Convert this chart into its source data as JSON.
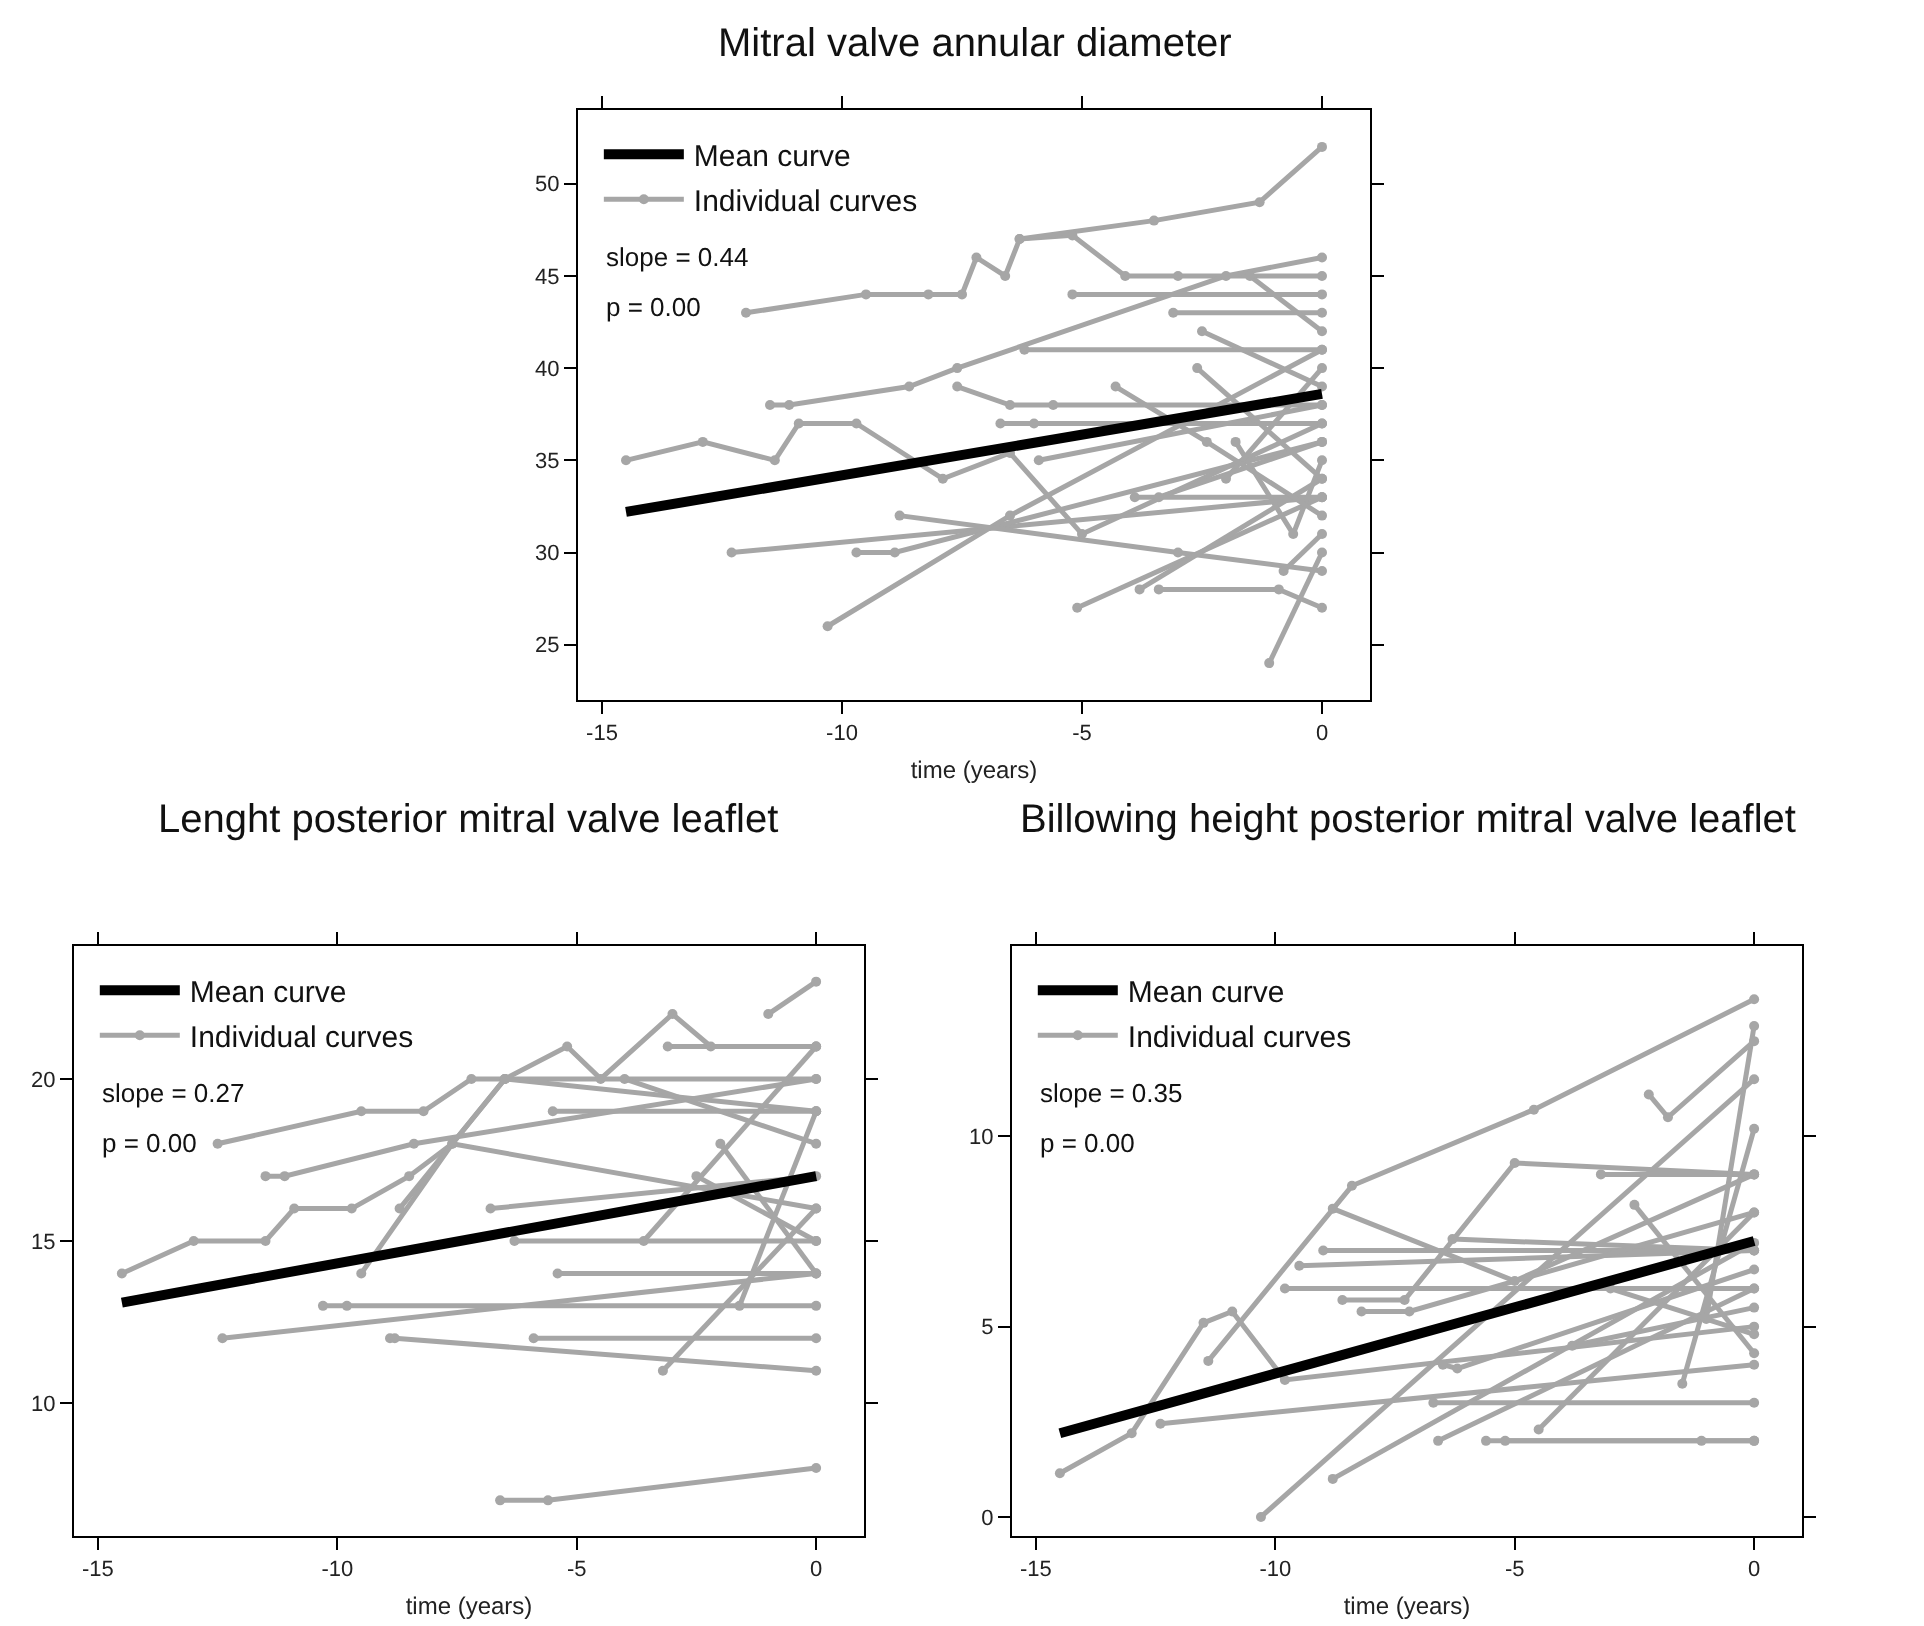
{
  "chart_data": [
    {
      "type": "line",
      "title": "Mitral valve annular diameter",
      "xlabel": "time (years)",
      "xlim": [
        -15.5,
        1.0
      ],
      "xticks": [
        -15,
        -10,
        -5,
        0
      ],
      "ylim": [
        22,
        54
      ],
      "yticks": [
        25,
        30,
        35,
        40,
        45,
        50
      ],
      "legend": "top left",
      "annotations": [
        "slope = 0.44",
        "p = 0.00"
      ],
      "series": [
        {
          "name": "Mean curve",
          "color": "#000000",
          "marker": "none",
          "x": [
            -14.5,
            0
          ],
          "values": [
            32.2,
            38.6
          ]
        },
        {
          "name": "Individual curves",
          "color": "#a6a6a6",
          "marker": "circle",
          "x": [
            -14.5,
            -12.9,
            -11.4,
            -10.9,
            -9.7,
            -7.9,
            -6.5,
            -5.0,
            0,
            null,
            -12.0,
            -9.5,
            -8.2,
            -7.5,
            -7.2,
            -6.6,
            -6.3,
            -5.2,
            -4.1,
            -3.0,
            0,
            null,
            -6.3,
            -3.5,
            -1.3,
            0,
            null,
            -11.5,
            -11.1,
            -8.6,
            -7.6,
            -2.0,
            0,
            null,
            -12.3,
            0,
            null,
            -9.7,
            -8.9,
            0,
            null,
            -10.3,
            -6.5,
            0,
            null,
            -8.8,
            -3.0,
            0,
            null,
            -5.2,
            0,
            null,
            -5.1,
            0,
            null,
            -3.8,
            0,
            null,
            -3.4,
            -0.9,
            0,
            null,
            -1.1,
            0,
            null,
            -6.7,
            -6.0,
            0,
            null,
            -6.2,
            0,
            null,
            -3.1,
            0,
            null,
            -7.6,
            -6.5,
            -5.6,
            0,
            null,
            -5.9,
            0,
            null,
            -3.9,
            0,
            null,
            -2.5,
            0,
            null,
            -1.8,
            -0.6,
            0,
            null,
            -2.0,
            0,
            null,
            -4.3,
            -2.4,
            0,
            null,
            -1.5,
            0,
            null,
            -0.8,
            0,
            null,
            -3.4,
            0,
            null,
            -2.6,
            0
          ],
          "values": [
            35,
            36,
            35,
            37,
            37,
            34,
            35.4,
            31,
            37,
            null,
            43,
            44,
            44,
            44,
            46,
            45,
            47,
            47.2,
            45,
            45,
            45,
            null,
            47,
            48,
            49,
            52,
            null,
            38,
            38,
            39,
            40,
            45,
            46,
            null,
            30,
            33,
            null,
            30,
            30,
            36,
            null,
            26,
            32,
            41,
            null,
            32,
            30,
            29,
            null,
            44,
            44,
            null,
            27,
            33,
            null,
            28,
            34,
            null,
            28,
            28,
            27,
            null,
            24,
            30,
            null,
            37,
            37,
            37,
            null,
            41,
            41,
            null,
            43,
            43,
            null,
            39,
            38,
            38,
            38,
            null,
            35,
            38,
            null,
            33,
            33,
            null,
            42,
            39,
            null,
            36,
            31,
            35,
            null,
            34,
            40,
            null,
            39,
            36,
            32,
            null,
            45,
            42,
            null,
            29,
            31,
            null,
            33,
            36,
            null,
            40,
            34
          ]
        }
      ]
    },
    {
      "type": "line",
      "title": "Lenght posterior mitral valve leaflet",
      "xlabel": "time (years)",
      "xlim": [
        -15.5,
        1.0
      ],
      "xticks": [
        -15,
        -10,
        -5,
        0
      ],
      "ylim": [
        5.9,
        24.1
      ],
      "yticks": [
        10,
        15,
        20
      ],
      "legend": "top left",
      "annotations": [
        "slope = 0.27",
        "p = 0.00"
      ],
      "series": [
        {
          "name": "Mean curve",
          "color": "#000000",
          "marker": "none",
          "x": [
            -14.5,
            0
          ],
          "values": [
            13.1,
            17.0
          ]
        },
        {
          "name": "Individual curves",
          "color": "#a6a6a6",
          "marker": "circle",
          "x": [
            -14.5,
            -13.0,
            -11.5,
            -10.9,
            -9.7,
            -8.5,
            -7.6,
            -6.5,
            0,
            null,
            -12.5,
            -9.5,
            -8.2,
            -7.2,
            -6.5,
            -5.2,
            -4.5,
            -3.0,
            -2.2,
            0,
            null,
            -11.5,
            -11.1,
            -8.4,
            0,
            null,
            -8.7,
            -6.5,
            0,
            null,
            -12.4,
            0,
            null,
            -10.3,
            -9.8,
            0,
            null,
            -9.5,
            -7.6,
            0,
            null,
            -8.9,
            -8.8,
            0,
            null,
            -6.6,
            -5.6,
            0,
            null,
            -3.2,
            0,
            null,
            -3.1,
            0,
            null,
            -1.0,
            0,
            null,
            -5.5,
            0,
            null,
            -6.8,
            0,
            null,
            -5.4,
            0,
            null,
            -6.3,
            0,
            null,
            -5.9,
            0,
            null,
            -4.0,
            0,
            null,
            -2.5,
            0,
            null,
            -1.6,
            0,
            null,
            -3.6,
            0,
            null,
            -2.0,
            0
          ],
          "values": [
            14,
            15,
            15,
            16,
            16,
            17,
            18,
            20,
            20,
            null,
            18,
            19,
            19,
            20,
            20,
            21,
            20,
            22,
            21,
            21,
            null,
            17,
            17,
            18,
            20,
            null,
            16,
            20,
            19,
            null,
            12,
            14,
            null,
            13,
            13,
            13,
            null,
            14,
            18,
            16,
            null,
            12,
            12,
            11,
            null,
            7,
            7,
            8,
            null,
            11,
            16,
            null,
            21,
            21,
            null,
            22,
            23,
            null,
            19,
            19,
            null,
            16,
            17,
            null,
            14,
            14,
            null,
            15,
            15,
            null,
            12,
            12,
            null,
            20,
            18,
            null,
            17,
            15,
            null,
            13,
            19,
            null,
            15,
            21,
            null,
            18,
            14
          ]
        }
      ]
    },
    {
      "type": "line",
      "title": "Billowing height posterior mitral valve leaflet",
      "xlabel": "time (years)",
      "xlim": [
        -15.5,
        1.0
      ],
      "xticks": [
        -15,
        -10,
        -5,
        0
      ],
      "ylim": [
        -0.5,
        15.0
      ],
      "yticks": [
        0,
        5,
        10
      ],
      "legend": "top left",
      "annotations": [
        "slope = 0.35",
        "p = 0.00"
      ],
      "series": [
        {
          "name": "Mean curve",
          "color": "#000000",
          "marker": "none",
          "x": [
            -14.5,
            0
          ],
          "values": [
            2.2,
            7.25
          ]
        },
        {
          "name": "Individual curves",
          "color": "#a6a6a6",
          "marker": "circle",
          "x": [
            -14.5,
            -13.0,
            -11.5,
            -10.9,
            -9.8,
            0,
            null,
            -11.4,
            -8.4,
            -4.6,
            0,
            null,
            -12.4,
            0,
            null,
            -10.3,
            0,
            null,
            -9.5,
            0,
            null,
            -9.8,
            0,
            null,
            -9.0,
            0,
            null,
            -8.8,
            0,
            null,
            -8.8,
            -5.0,
            0,
            null,
            -8.6,
            -7.3,
            -5.0,
            0,
            null,
            -8.2,
            -7.2,
            0,
            null,
            -6.6,
            0,
            null,
            -5.6,
            -1.1,
            0,
            null,
            -5.2,
            0,
            null,
            -6.7,
            0,
            null,
            -6.3,
            0,
            null,
            -6.5,
            -6.2,
            0,
            null,
            -4.5,
            0,
            null,
            -2.2,
            -1.8,
            0,
            null,
            -3.2,
            0,
            null,
            -3.8,
            0,
            null,
            -2.5,
            0,
            null,
            -1.5,
            0,
            null,
            -3.0,
            0,
            null,
            -1.0,
            0
          ],
          "values": [
            1.15,
            2.2,
            5.1,
            5.4,
            3.6,
            5,
            null,
            4.1,
            8.7,
            10.7,
            13.6,
            null,
            2.45,
            4,
            null,
            0,
            11.5,
            null,
            6.6,
            7,
            null,
            6,
            6,
            null,
            7,
            7,
            null,
            1,
            7.2,
            null,
            8.1,
            6.2,
            9,
            null,
            5.7,
            5.7,
            9.3,
            9,
            null,
            5.4,
            5.4,
            8,
            null,
            2,
            6,
            null,
            2,
            2,
            2,
            null,
            2,
            2,
            null,
            3,
            3,
            null,
            7.3,
            7,
            null,
            4,
            3.9,
            6.5,
            null,
            2.3,
            8,
            null,
            11.1,
            10.5,
            12.5,
            null,
            9,
            9,
            null,
            4.5,
            5.5,
            null,
            8.2,
            4.3,
            null,
            3.5,
            10.2,
            null,
            6,
            4.8,
            null,
            5.2,
            12.9
          ]
        }
      ]
    }
  ]
}
